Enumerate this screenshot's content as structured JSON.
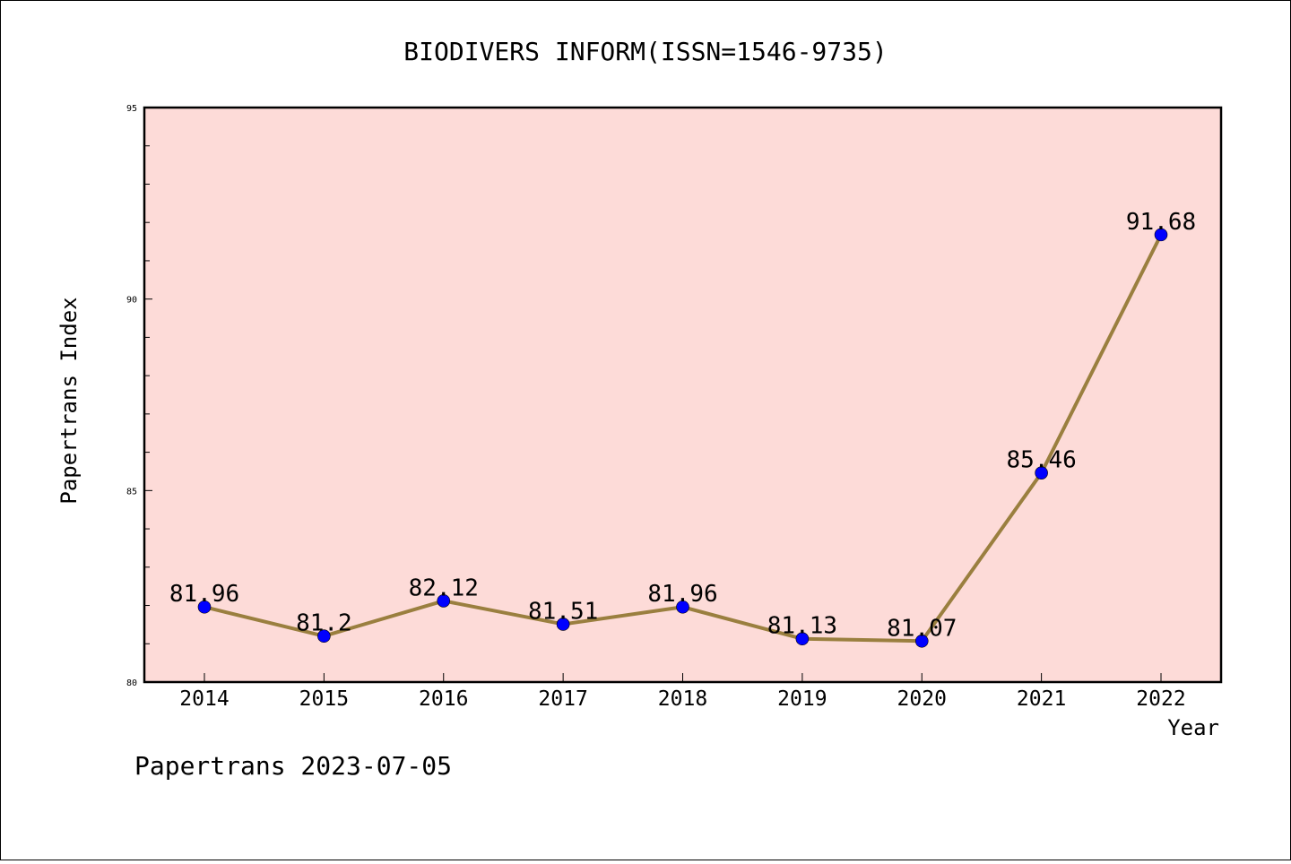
{
  "chart_data": {
    "type": "line",
    "title": "BIODIVERS INFORM(ISSN=1546-9735)",
    "xlabel": "Year",
    "ylabel": "Papertrans Index",
    "categories": [
      "2014",
      "2015",
      "2016",
      "2017",
      "2018",
      "2019",
      "2020",
      "2021",
      "2022"
    ],
    "series": [
      {
        "values": [
          81.96,
          81.2,
          82.12,
          81.51,
          81.96,
          81.13,
          81.07,
          85.46,
          91.68
        ],
        "labels": [
          "81.96",
          "81.2",
          "82.12",
          "81.51",
          "81.96",
          "81.13",
          "81.07",
          "85.46",
          "91.68"
        ]
      }
    ],
    "ylim": [
      80,
      95
    ],
    "yticks": [
      "80",
      "85",
      "90",
      "95"
    ],
    "y_minor_step": 1,
    "grid": false,
    "colors": {
      "plot_background": "#fddbd8",
      "line": "#9a7f3f",
      "marker": "#0000ff"
    }
  },
  "footer": "Papertrans 2023-07-05"
}
